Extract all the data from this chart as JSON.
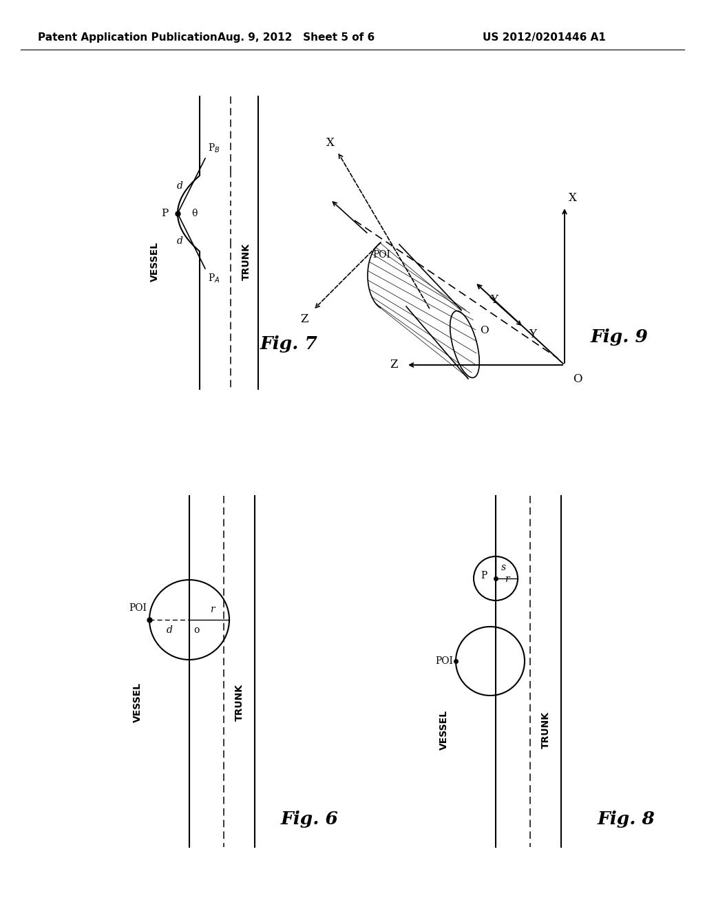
{
  "header_left": "Patent Application Publication",
  "header_mid": "Aug. 9, 2012   Sheet 5 of 6",
  "header_right": "US 2012/0201446 A1",
  "background": "#ffffff",
  "fig7_label": "Fig. 7",
  "fig6_label": "Fig. 6",
  "fig9_label": "Fig. 9",
  "fig8_label": "Fig. 8"
}
